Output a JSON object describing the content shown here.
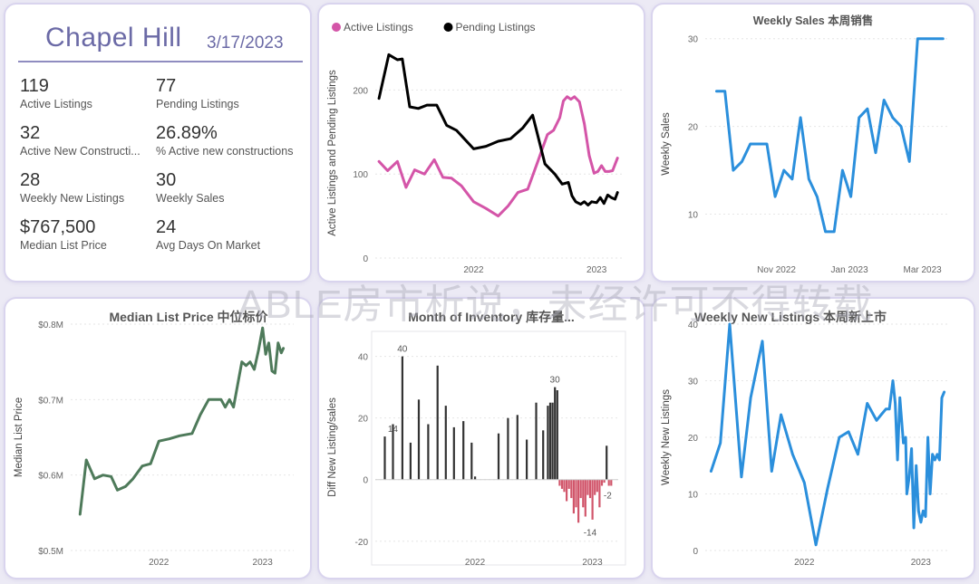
{
  "kpi_panel": {
    "title": "Chapel Hill",
    "date": "3/17/2023",
    "metrics": [
      {
        "value": "119",
        "label": "Active Listings"
      },
      {
        "value": "77",
        "label": "Pending Listings"
      },
      {
        "value": "32",
        "label": "Active New Constructi..."
      },
      {
        "value": "26.89%",
        "label": "% Active new constructions"
      },
      {
        "value": "28",
        "label": "Weekly New Listings"
      },
      {
        "value": "30",
        "label": "Weekly Sales"
      },
      {
        "value": "$767,500",
        "label": "Median List Price"
      },
      {
        "value": "24",
        "label": "Avg Days On Market"
      }
    ]
  },
  "watermark": "ABLE房市析说，未经许可不得转载",
  "colors": {
    "active": "#d455a8",
    "pending": "#000000",
    "blue": "#2b8fdc",
    "green": "#4e7a5a",
    "bar_pos": "#333333",
    "bar_neg": "#d1566b"
  },
  "chart_data": [
    {
      "type": "line",
      "title": "",
      "ylabel": "Active Listings and Pending Listings",
      "legend": [
        "Active Listings",
        "Pending Listings"
      ],
      "legend_placement": "top-left",
      "x_ticks": [
        {
          "t": 2022,
          "label": "2022"
        },
        {
          "t": 2023,
          "label": "2023"
        }
      ],
      "y_ticks": [
        0,
        100,
        200
      ],
      "xlim": [
        2021.2,
        2023.22
      ],
      "ylim": [
        0,
        250
      ],
      "series": [
        {
          "name": "Active Listings",
          "color_key": "active",
          "x": [
            2021.23,
            2021.3,
            2021.38,
            2021.45,
            2021.52,
            2021.6,
            2021.68,
            2021.75,
            2021.82,
            2021.9,
            2022.0,
            2022.1,
            2022.2,
            2022.28,
            2022.36,
            2022.44,
            2022.52,
            2022.6,
            2022.65,
            2022.7,
            2022.73,
            2022.76,
            2022.79,
            2022.82,
            2022.86,
            2022.9,
            2022.94,
            2022.98,
            2023.01,
            2023.04,
            2023.07,
            2023.1,
            2023.13,
            2023.17
          ],
          "y": [
            115,
            104,
            115,
            84,
            105,
            100,
            117,
            96,
            95,
            86,
            67,
            59,
            50,
            62,
            78,
            82,
            114,
            147,
            152,
            167,
            187,
            192,
            189,
            192,
            186,
            160,
            122,
            101,
            103,
            110,
            103,
            103,
            104,
            119
          ]
        },
        {
          "name": "Pending Listings",
          "color_key": "pending",
          "x": [
            2021.23,
            2021.31,
            2021.38,
            2021.42,
            2021.48,
            2021.55,
            2021.62,
            2021.7,
            2021.78,
            2021.86,
            2022.0,
            2022.1,
            2022.2,
            2022.3,
            2022.4,
            2022.48,
            2022.58,
            2022.66,
            2022.72,
            2022.77,
            2022.8,
            2022.83,
            2022.87,
            2022.9,
            2022.93,
            2022.96,
            2023.0,
            2023.03,
            2023.06,
            2023.09,
            2023.12,
            2023.15,
            2023.17
          ],
          "y": [
            190,
            242,
            236,
            237,
            180,
            178,
            182,
            182,
            158,
            152,
            130,
            133,
            139,
            142,
            155,
            170,
            112,
            100,
            88,
            90,
            74,
            67,
            64,
            67,
            63,
            67,
            66,
            72,
            65,
            75,
            72,
            70,
            78
          ]
        }
      ]
    },
    {
      "type": "line",
      "title": "Weekly Sales 本周销售",
      "ylabel": "Weekly Sales",
      "x_ticks": [
        {
          "t": 2022.833,
          "label": "Nov 2022"
        },
        {
          "t": 2023.0,
          "label": "Jan 2023"
        },
        {
          "t": 2023.167,
          "label": "Mar 2023"
        }
      ],
      "y_ticks": [
        10,
        20,
        30
      ],
      "xlim": [
        2022.67,
        2023.23
      ],
      "ylim": [
        5,
        31
      ],
      "series": [
        {
          "name": "Weekly Sales",
          "color_key": "blue",
          "x": [
            2022.696,
            2022.715,
            2022.734,
            2022.754,
            2022.773,
            2022.792,
            2022.811,
            2022.83,
            2022.85,
            2022.869,
            2022.888,
            2022.907,
            2022.926,
            2022.945,
            2022.965,
            2022.984,
            2023.003,
            2023.022,
            2023.041,
            2023.06,
            2023.079,
            2023.099,
            2023.118,
            2023.137,
            2023.156,
            2023.175,
            2023.194,
            2023.214
          ],
          "y": [
            24,
            24,
            15,
            16,
            18,
            18,
            18,
            12,
            15,
            14,
            21,
            14,
            12,
            8,
            8,
            15,
            12,
            21,
            22,
            17,
            23,
            21,
            20,
            16,
            30,
            30,
            30,
            30
          ]
        }
      ]
    },
    {
      "type": "line",
      "title": "Median List Price  中位标价",
      "ylabel": "Median List Price",
      "x_ticks": [
        {
          "t": 2022,
          "label": "2022"
        },
        {
          "t": 2023,
          "label": "2023"
        }
      ],
      "y_ticks": [
        {
          "v": 0.5,
          "label": "$0.5M"
        },
        {
          "v": 0.6,
          "label": "$0.6M"
        },
        {
          "v": 0.7,
          "label": "$0.7M"
        },
        {
          "v": 0.8,
          "label": "$0.8M"
        }
      ],
      "xlim": [
        2021.15,
        2023.3
      ],
      "ylim": [
        0.5,
        0.8
      ],
      "series": [
        {
          "name": "Median List Price",
          "color_key": "green",
          "x": [
            2021.24,
            2021.3,
            2021.38,
            2021.46,
            2021.54,
            2021.6,
            2021.68,
            2021.75,
            2021.84,
            2021.92,
            2022.0,
            2022.1,
            2022.2,
            2022.32,
            2022.4,
            2022.48,
            2022.54,
            2022.6,
            2022.64,
            2022.68,
            2022.72,
            2022.76,
            2022.8,
            2022.84,
            2022.88,
            2022.92,
            2022.96,
            2023.0,
            2023.03,
            2023.06,
            2023.09,
            2023.12,
            2023.15,
            2023.18,
            2023.2
          ],
          "y": [
            0.548,
            0.62,
            0.595,
            0.6,
            0.598,
            0.58,
            0.585,
            0.595,
            0.612,
            0.615,
            0.645,
            0.648,
            0.652,
            0.655,
            0.68,
            0.7,
            0.7,
            0.7,
            0.69,
            0.7,
            0.69,
            0.72,
            0.75,
            0.745,
            0.75,
            0.74,
            0.765,
            0.795,
            0.76,
            0.775,
            0.738,
            0.735,
            0.775,
            0.762,
            0.768
          ]
        }
      ]
    },
    {
      "type": "bar",
      "title": "Month of Inventory 库存量...",
      "ylabel": "Diff New Listing/sales",
      "x_ticks": [
        {
          "t": 2022,
          "label": "2022"
        },
        {
          "t": 2023,
          "label": "2023"
        }
      ],
      "y_ticks": [
        -20,
        0,
        20,
        40
      ],
      "xlim": [
        2021.15,
        2023.22
      ],
      "ylim": [
        -23,
        44
      ],
      "data_labels": [
        {
          "t": 2021.3,
          "v": 14,
          "text": "14"
        },
        {
          "t": 2021.38,
          "v": 40,
          "text": "40"
        },
        {
          "t": 2022.68,
          "v": 30,
          "text": "30"
        },
        {
          "t": 2022.98,
          "v": -14,
          "text": "-14"
        },
        {
          "t": 2023.13,
          "v": -2,
          "text": "-2"
        }
      ],
      "x": [
        2021.23,
        2021.3,
        2021.38,
        2021.45,
        2021.52,
        2021.6,
        2021.68,
        2021.75,
        2021.82,
        2021.9,
        2021.97,
        2022.0,
        2022.2,
        2022.28,
        2022.36,
        2022.44,
        2022.52,
        2022.58,
        2022.62,
        2022.64,
        2022.66,
        2022.68,
        2022.7,
        2022.72,
        2022.74,
        2022.76,
        2022.78,
        2022.8,
        2022.82,
        2022.84,
        2022.86,
        2022.88,
        2022.9,
        2022.92,
        2022.94,
        2022.96,
        2022.98,
        2023.0,
        2023.02,
        2023.04,
        2023.06,
        2023.08,
        2023.1,
        2023.12,
        2023.14,
        2023.16
      ],
      "values": [
        14,
        18,
        40,
        12,
        26,
        18,
        37,
        24,
        17,
        19,
        12,
        1,
        15,
        20,
        21,
        13,
        25,
        16,
        24,
        25,
        25,
        30,
        29,
        -2,
        -3,
        -4,
        -7,
        -3,
        -6,
        -11,
        -9,
        -14,
        -6,
        -9,
        -12,
        -5,
        -6,
        -13,
        -5,
        -4,
        -9,
        -2,
        -1,
        11,
        -2,
        -2
      ]
    },
    {
      "type": "line",
      "title": "Weekly New Listings  本周新上市",
      "ylabel": "Weekly New Listings",
      "x_ticks": [
        {
          "t": 2022,
          "label": "2022"
        },
        {
          "t": 2023,
          "label": "2023"
        }
      ],
      "y_ticks": [
        0,
        10,
        20,
        30,
        40
      ],
      "xlim": [
        2021.15,
        2023.25
      ],
      "ylim": [
        0,
        40
      ],
      "series": [
        {
          "name": "Weekly New Listings",
          "color_key": "blue",
          "x": [
            2021.2,
            2021.28,
            2021.36,
            2021.46,
            2021.54,
            2021.64,
            2021.72,
            2021.8,
            2021.9,
            2022.0,
            2022.1,
            2022.2,
            2022.3,
            2022.38,
            2022.46,
            2022.54,
            2022.62,
            2022.66,
            2022.7,
            2022.73,
            2022.76,
            2022.78,
            2022.8,
            2022.82,
            2022.85,
            2022.87,
            2022.88,
            2022.9,
            2022.92,
            2022.94,
            2022.96,
            2022.98,
            2023.0,
            2023.02,
            2023.04,
            2023.06,
            2023.08,
            2023.1,
            2023.12,
            2023.14,
            2023.16,
            2023.18,
            2023.2
          ],
          "y": [
            14,
            19,
            40,
            13,
            27,
            37,
            14,
            24,
            17,
            12,
            1,
            11,
            20,
            21,
            17,
            26,
            23,
            24,
            25,
            25,
            30,
            26,
            16,
            27,
            19,
            20,
            10,
            13,
            18,
            4,
            15,
            7,
            5,
            7,
            6,
            20,
            10,
            17,
            16,
            17,
            16,
            27,
            28
          ]
        }
      ]
    }
  ]
}
